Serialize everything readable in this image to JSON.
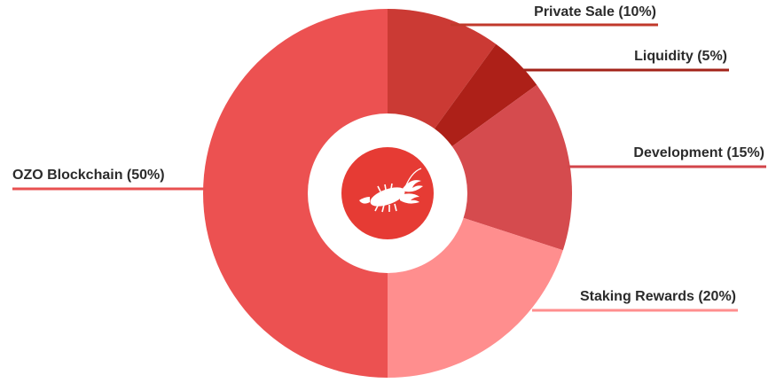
{
  "chart_data": {
    "type": "pie",
    "variant": "donut",
    "title": "",
    "start_angle_deg": 0,
    "direction": "clockwise",
    "slices": [
      {
        "label": "Private Sale (10%)",
        "value": 10,
        "color": "#CB3A34",
        "line_color": "#C0392B"
      },
      {
        "label": "Liquidity (5%)",
        "value": 5,
        "color": "#AD2018",
        "line_color": "#A3231A"
      },
      {
        "label": "Development (15%)",
        "value": 15,
        "color": "#D54B4E",
        "line_color": "#D2454A"
      },
      {
        "label": "Staking Rewards (20%)",
        "value": 20,
        "color": "#FF8E8E",
        "line_color": "#FF8E8E"
      },
      {
        "label": "OZO Blockchain (50%)",
        "value": 50,
        "color": "#EC5151",
        "line_color": "#E85050"
      }
    ]
  },
  "center_logo": {
    "icon": "lobster-icon",
    "color": "#E63B34"
  }
}
